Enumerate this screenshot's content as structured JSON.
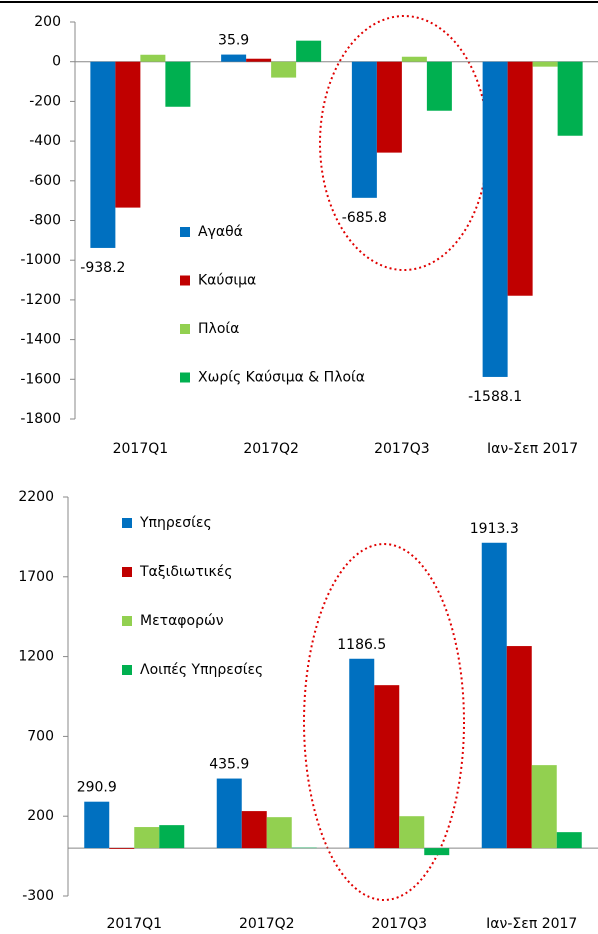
{
  "chart_data": [
    {
      "type": "bar",
      "categories": [
        "2017Q1",
        "2017Q2",
        "2017Q3",
        "Ιαν-Σεπ 2017"
      ],
      "series": [
        {
          "name": "Αγαθά",
          "color": "#0070c0",
          "values": [
            -938.2,
            35.9,
            -685.8,
            -1588.1
          ],
          "show_labels": true
        },
        {
          "name": "Καύσιμα",
          "color": "#c00000",
          "values": [
            -735,
            15,
            -458,
            -1179
          ]
        },
        {
          "name": "Πλοία",
          "color": "#92d050",
          "values": [
            35,
            -80,
            25,
            -25
          ]
        },
        {
          "name": "Χωρίς Καύσιμα & Πλοία",
          "color": "#00b050",
          "values": [
            -227,
            106,
            -247,
            -373
          ]
        }
      ],
      "ylim": [
        -1800,
        200
      ],
      "yticks": [
        -1800,
        -1600,
        -1400,
        -1200,
        -1000,
        -800,
        -600,
        -400,
        -200,
        0,
        200
      ],
      "grid": false
    },
    {
      "type": "bar",
      "categories": [
        "2017Q1",
        "2017Q2",
        "2017Q3",
        "Ιαν-Σεπ 2017"
      ],
      "series": [
        {
          "name": "Υπηρεσίες",
          "color": "#0070c0",
          "values": [
            290.9,
            435.9,
            1186.5,
            1913.3
          ],
          "show_labels": true
        },
        {
          "name": "Ταξιδιωτικές",
          "color": "#c00000",
          "values": [
            -5,
            232,
            1021,
            1266
          ]
        },
        {
          "name": "Μεταφορών",
          "color": "#92d050",
          "values": [
            132,
            194,
            200,
            520
          ]
        },
        {
          "name": "Λοιπές Υπηρεσίες",
          "color": "#00b050",
          "values": [
            144,
            3,
            -44,
            100
          ]
        }
      ],
      "ylim": [
        -300,
        2200
      ],
      "yticks": [
        -300,
        200,
        700,
        1200,
        1700,
        2200
      ],
      "grid": false
    }
  ]
}
